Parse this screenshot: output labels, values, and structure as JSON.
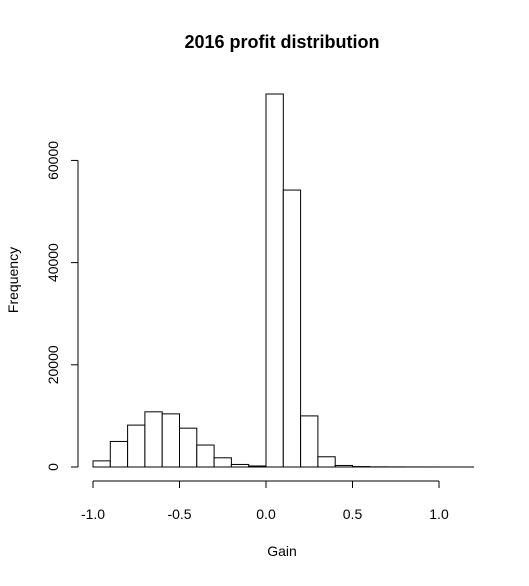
{
  "chart_data": {
    "type": "bar",
    "title": "2016 profit distribution",
    "xlabel": "Gain",
    "ylabel": "Frequency",
    "xlim": [
      -1.0,
      1.2
    ],
    "ylim": [
      0,
      73000
    ],
    "x_ticks": [
      -1.0,
      -0.5,
      0.0,
      0.5,
      1.0
    ],
    "x_tick_labels": [
      "-1.0",
      "-0.5",
      "0.0",
      "0.5",
      "1.0"
    ],
    "y_ticks": [
      0,
      20000,
      40000,
      60000
    ],
    "y_tick_labels": [
      "0",
      "20000",
      "40000",
      "60000"
    ],
    "bin_width": 0.1,
    "bins": [
      {
        "x0": -1.0,
        "x1": -0.9,
        "value": 1200
      },
      {
        "x0": -0.9,
        "x1": -0.8,
        "value": 5000
      },
      {
        "x0": -0.8,
        "x1": -0.7,
        "value": 8200
      },
      {
        "x0": -0.7,
        "x1": -0.6,
        "value": 10800
      },
      {
        "x0": -0.6,
        "x1": -0.5,
        "value": 10400
      },
      {
        "x0": -0.5,
        "x1": -0.4,
        "value": 7600
      },
      {
        "x0": -0.4,
        "x1": -0.3,
        "value": 4300
      },
      {
        "x0": -0.3,
        "x1": -0.2,
        "value": 1800
      },
      {
        "x0": -0.2,
        "x1": -0.1,
        "value": 500
      },
      {
        "x0": -0.1,
        "x1": 0.0,
        "value": 200
      },
      {
        "x0": 0.0,
        "x1": 0.1,
        "value": 73000
      },
      {
        "x0": 0.1,
        "x1": 0.2,
        "value": 54200
      },
      {
        "x0": 0.2,
        "x1": 0.3,
        "value": 10000
      },
      {
        "x0": 0.3,
        "x1": 0.4,
        "value": 2000
      },
      {
        "x0": 0.4,
        "x1": 0.5,
        "value": 300
      },
      {
        "x0": 0.5,
        "x1": 0.6,
        "value": 80
      },
      {
        "x0": 0.6,
        "x1": 0.7,
        "value": 30
      },
      {
        "x0": 0.7,
        "x1": 0.8,
        "value": 20
      },
      {
        "x0": 0.8,
        "x1": 0.9,
        "value": 10
      },
      {
        "x0": 0.9,
        "x1": 1.0,
        "value": 5
      },
      {
        "x0": 1.0,
        "x1": 1.1,
        "value": 3
      },
      {
        "x0": 1.1,
        "x1": 1.2,
        "value": 2
      }
    ],
    "grid": false,
    "bar_fill": "#ffffff",
    "bar_stroke": "#000000"
  }
}
